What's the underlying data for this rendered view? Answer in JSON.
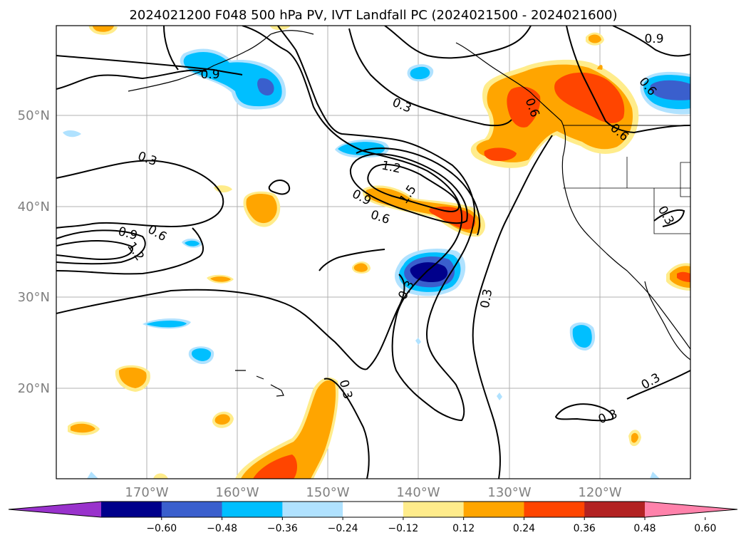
{
  "title": "2024021200 F048 500 hPa PV, IVT Landfall PC (2024021500 - 2024021600)",
  "map": {
    "lon_ticks": [
      "170°W",
      "160°W",
      "150°W",
      "140°W",
      "130°W",
      "120°W"
    ],
    "lat_ticks": [
      "50°N",
      "40°N",
      "30°N",
      "20°N"
    ],
    "contour_labels": [
      "0.9",
      "0.3",
      "0.3",
      "1.2",
      "1.5",
      "0.9",
      "0.6",
      "0.9",
      "0.6",
      "1.2",
      "0.3",
      "0.3",
      "0.3",
      "0.3",
      "0.3",
      "0.3",
      "0.9",
      "0.6",
      "0.6",
      "0.6"
    ]
  },
  "colorbar": {
    "ticks": [
      "−0.60",
      "−0.48",
      "−0.36",
      "−0.24",
      "−0.12",
      "0.12",
      "0.24",
      "0.36",
      "0.48",
      "0.60"
    ],
    "colors": [
      "#9932cc",
      "#00008b",
      "#3a5fcd",
      "#00bfff",
      "#b0e2ff",
      "#ffffff",
      "#ffec8b",
      "#ffa500",
      "#ff4500",
      "#b22222",
      "#ff82ab"
    ]
  },
  "colors": {
    "fill_purple": "#9932cc",
    "fill_navy": "#00008b",
    "fill_blue": "#3a5fcd",
    "fill_deepskyblue": "#00bfff",
    "fill_lightblue": "#b0e2ff",
    "fill_lightyellow": "#ffec8b",
    "fill_orange": "#ffa500",
    "fill_orangered": "#ff4500",
    "fill_firebrick": "#b22222",
    "fill_pink": "#ff82ab"
  }
}
